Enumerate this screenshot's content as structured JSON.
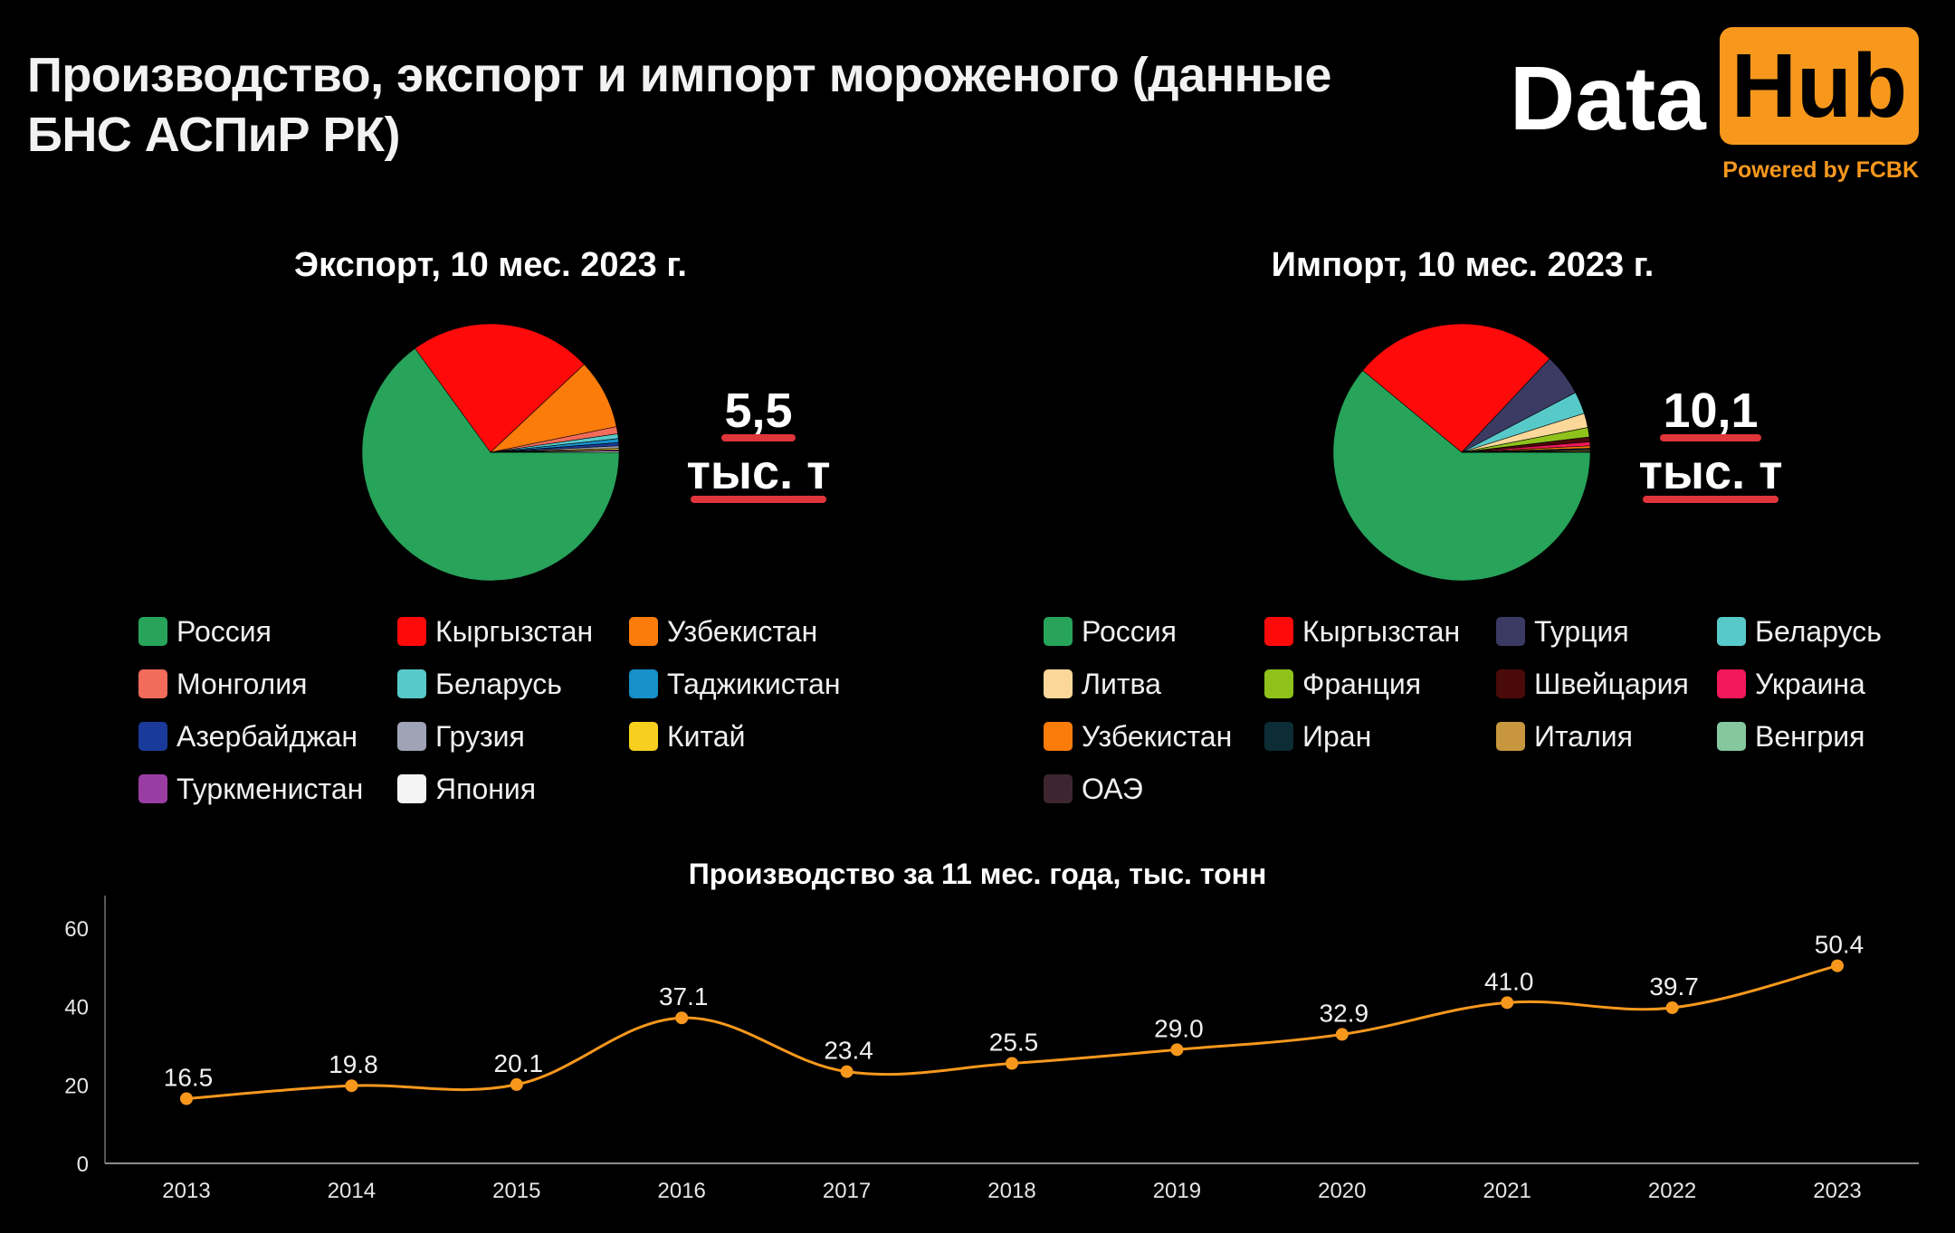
{
  "header": {
    "title": "Производство, экспорт и импорт мороженого (данные БНС АСПиР РК)"
  },
  "logo": {
    "data_text": "Data",
    "hub_text": "Hub",
    "powered": "Powered by FCBK",
    "accent_color": "#f7981d"
  },
  "export": {
    "title": "Экспорт, 10 мес. 2023  г.",
    "total_value": "5,5",
    "total_unit": "тыс. т"
  },
  "import": {
    "title": "Импорт, 10 мес. 2023 г.",
    "total_value": "10,1",
    "total_unit": "тыс. т"
  },
  "line": {
    "title": "Производство за 11 мес. года, тыс. тонн"
  },
  "chart_data": [
    {
      "type": "pie",
      "title": "Экспорт, 10 мес. 2023  г.",
      "legend_position": "bottom",
      "slices": [
        {
          "label": "Россия",
          "value": 65.0,
          "color": "#27a35a"
        },
        {
          "label": "Кыргызстан",
          "value": 23.0,
          "color": "#ff0a0a"
        },
        {
          "label": "Узбекистан",
          "value": 8.8,
          "color": "#fb7b0b"
        },
        {
          "label": "Монголия",
          "value": 0.9,
          "color": "#f26b5b"
        },
        {
          "label": "Беларусь",
          "value": 0.6,
          "color": "#58c9c9"
        },
        {
          "label": "Таджикистан",
          "value": 0.5,
          "color": "#1790c9"
        },
        {
          "label": "Азербайджан",
          "value": 0.4,
          "color": "#1a3a99"
        },
        {
          "label": "Грузия",
          "value": 0.3,
          "color": "#9ea3b5"
        },
        {
          "label": "Китай",
          "value": 0.2,
          "color": "#f7cf1e"
        },
        {
          "label": "Туркменистан",
          "value": 0.15,
          "color": "#9a3da3"
        },
        {
          "label": "Япония",
          "value": 0.15,
          "color": "#f3f3f3"
        }
      ]
    },
    {
      "type": "pie",
      "title": "Импорт, 10 мес. 2023 г.",
      "legend_position": "bottom",
      "slices": [
        {
          "label": "Россия",
          "value": 61.0,
          "color": "#27a35a"
        },
        {
          "label": "Кыргызстан",
          "value": 26.0,
          "color": "#ff0a0a"
        },
        {
          "label": "Турция",
          "value": 5.3,
          "color": "#3b3a63"
        },
        {
          "label": "Беларусь",
          "value": 2.8,
          "color": "#58c9c9"
        },
        {
          "label": "Литва",
          "value": 1.8,
          "color": "#fbd89a"
        },
        {
          "label": "Франция",
          "value": 1.2,
          "color": "#8ec21b"
        },
        {
          "label": "Швейцария",
          "value": 0.6,
          "color": "#4a0a0a"
        },
        {
          "label": "Украина",
          "value": 0.5,
          "color": "#f2175a"
        },
        {
          "label": "Узбекистан",
          "value": 0.3,
          "color": "#fb7b0b"
        },
        {
          "label": "Иран",
          "value": 0.2,
          "color": "#0c2d35"
        },
        {
          "label": "Италия",
          "value": 0.15,
          "color": "#c8963e"
        },
        {
          "label": "Венгрия",
          "value": 0.1,
          "color": "#85c79f"
        },
        {
          "label": "ОАЭ",
          "value": 0.05,
          "color": "#3d2630"
        }
      ]
    },
    {
      "type": "line",
      "title": "Производство за 11 мес. года, тыс. тонн",
      "x": [
        "2013",
        "2014",
        "2015",
        "2016",
        "2017",
        "2018",
        "2019",
        "2020",
        "2021",
        "2022",
        "2023"
      ],
      "values": [
        16.5,
        19.8,
        20.1,
        37.1,
        23.4,
        25.5,
        29.0,
        32.9,
        41.0,
        39.7,
        50.4
      ],
      "labels": [
        "16.5",
        "19.8",
        "20.1",
        "37.1",
        "23.4",
        "25.5",
        "29.0",
        "32.9",
        "41.0",
        "39.7",
        "50.4"
      ],
      "ylim": [
        0,
        60
      ],
      "yticks": [
        "0",
        "20",
        "40",
        "60"
      ],
      "color": "#f7981d",
      "grid": false
    }
  ]
}
